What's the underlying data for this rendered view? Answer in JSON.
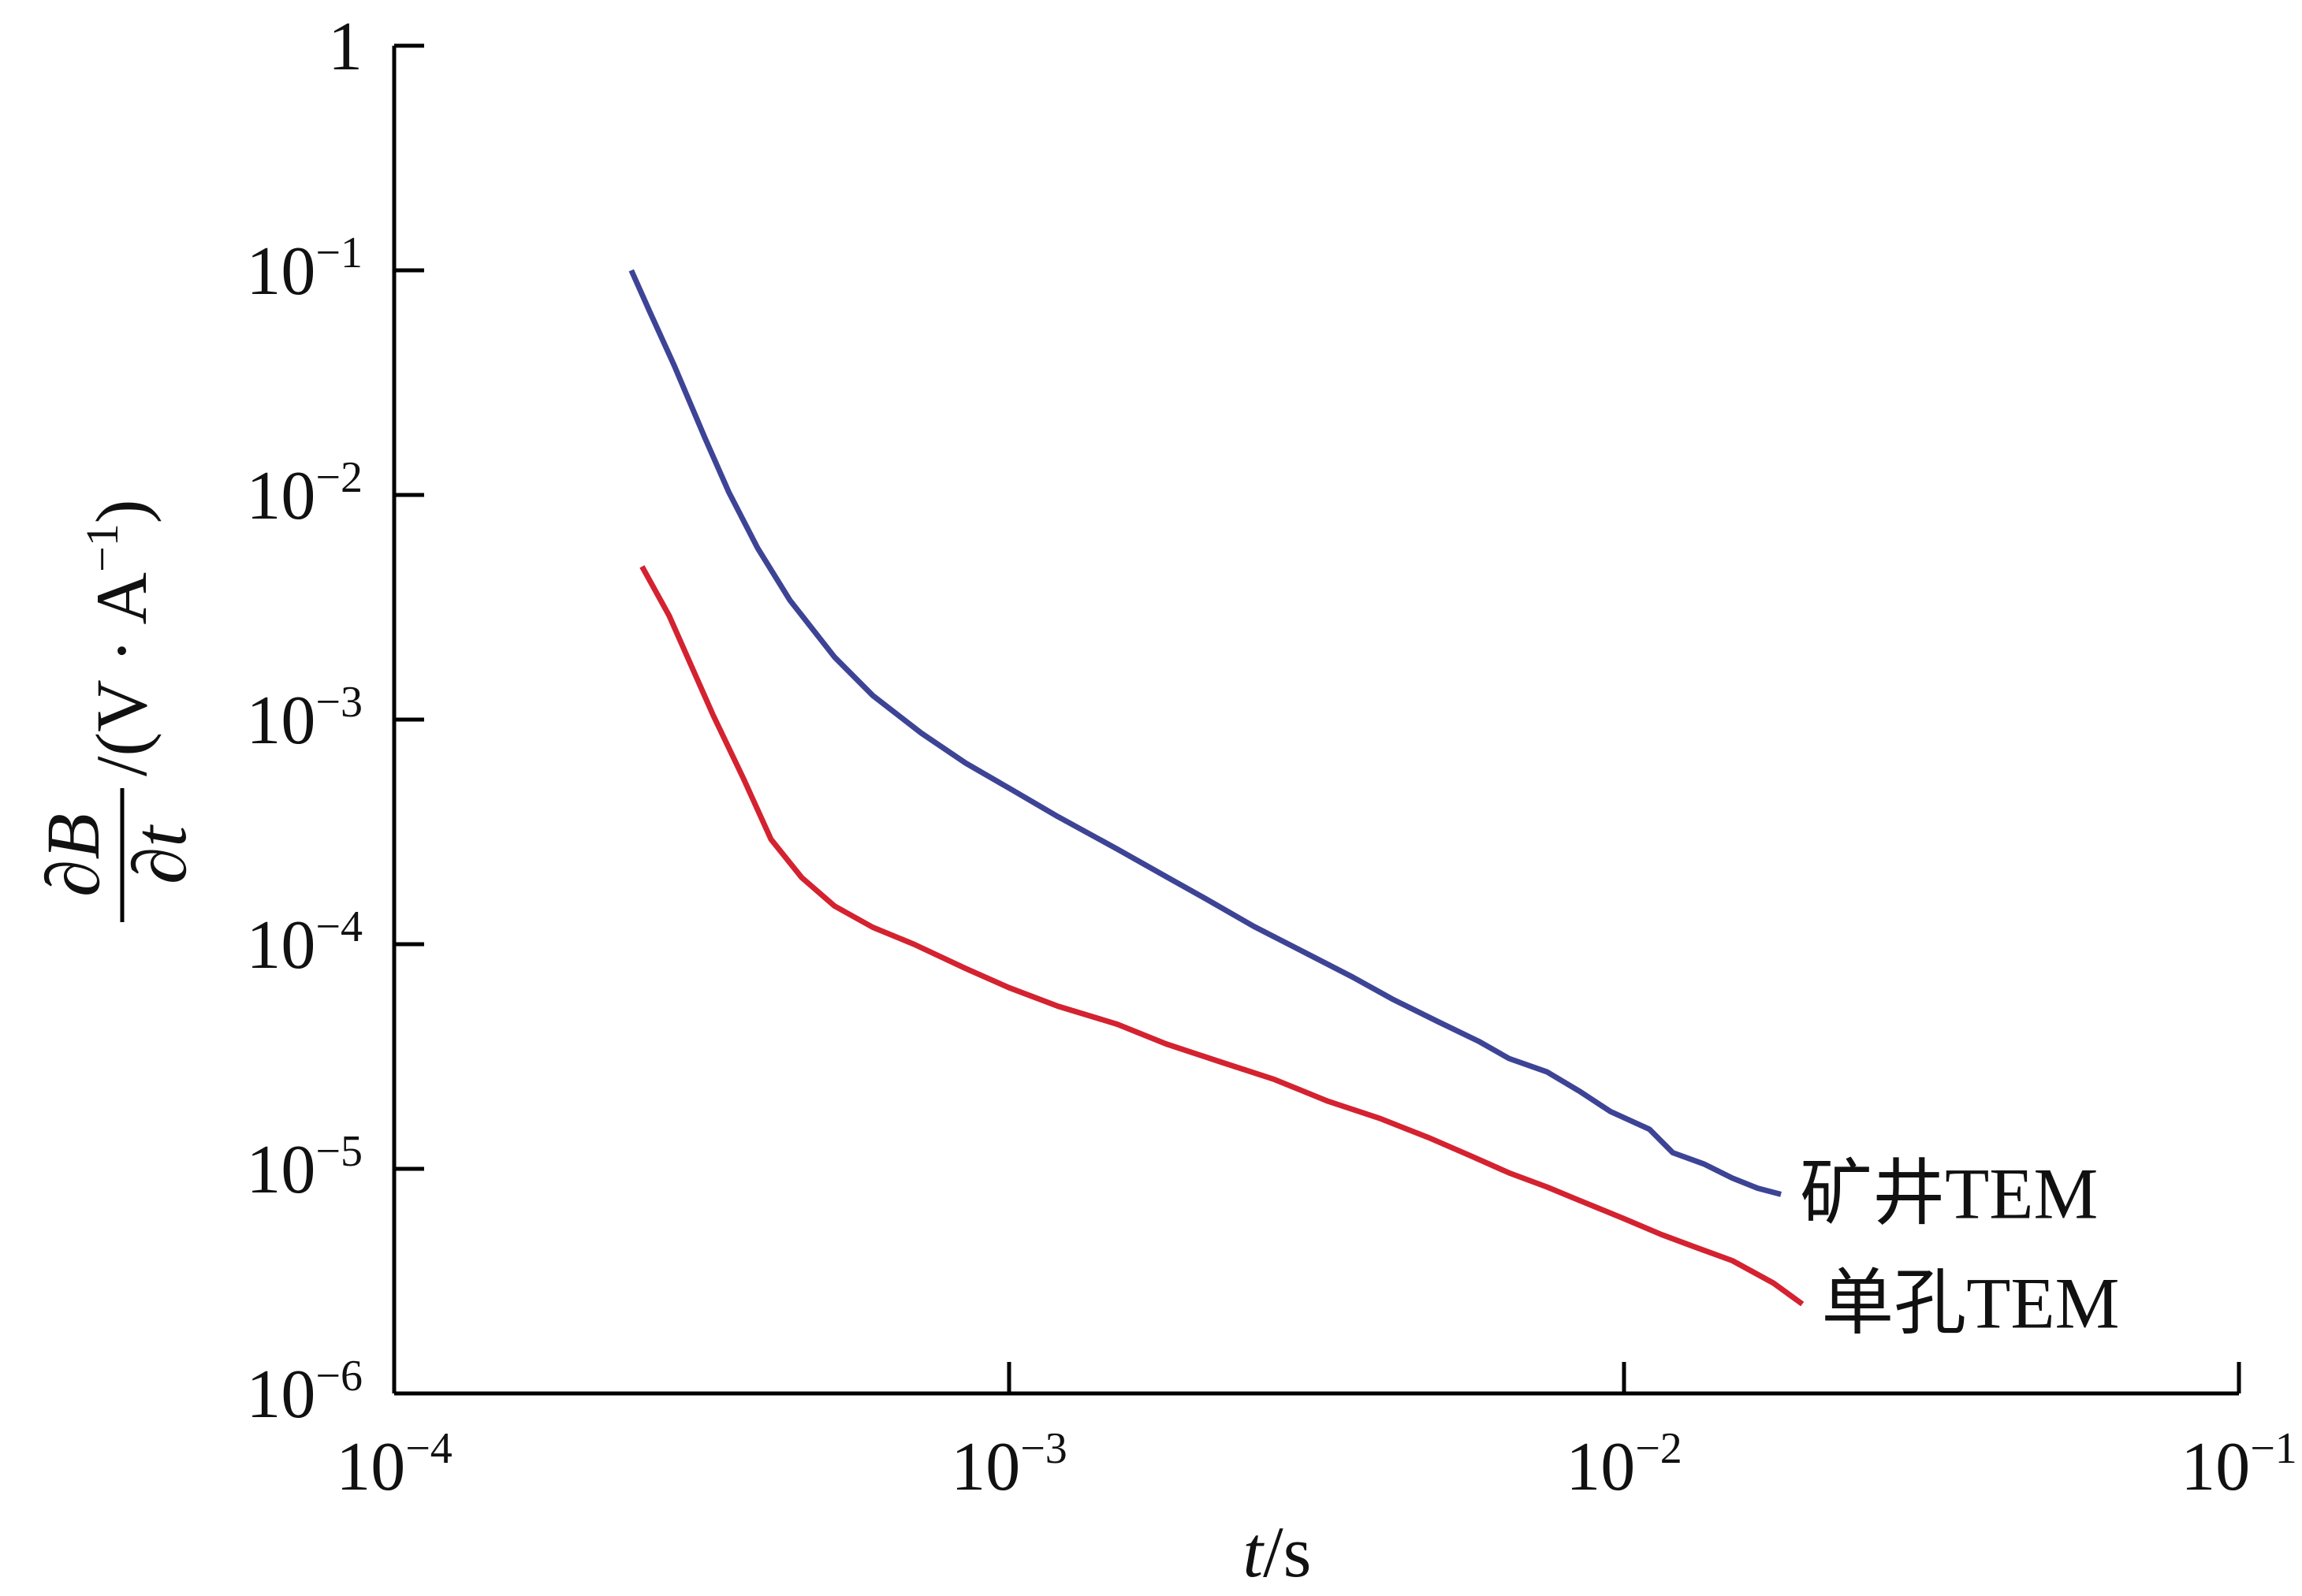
{
  "chart_data": {
    "type": "line",
    "x_scale": "log",
    "y_scale": "log",
    "xlim": [
      0.0001,
      0.1
    ],
    "ylim": [
      1e-06,
      1
    ],
    "grid": false,
    "xlabel": {
      "var": "t",
      "unit": "/s"
    },
    "ylabel": {
      "num": "∂B",
      "den": "∂t",
      "unit": "/(V · A",
      "sup": "−1",
      "close": ")"
    },
    "x_ticks": [
      {
        "v": 0.0001,
        "base": "10",
        "exp": "−4"
      },
      {
        "v": 0.001,
        "base": "10",
        "exp": "−3"
      },
      {
        "v": 0.01,
        "base": "10",
        "exp": "−2"
      },
      {
        "v": 0.1,
        "base": "10",
        "exp": "−1"
      }
    ],
    "y_ticks": [
      {
        "v": 1,
        "base": "1",
        "exp": ""
      },
      {
        "v": 0.1,
        "base": "10",
        "exp": "−1"
      },
      {
        "v": 0.01,
        "base": "10",
        "exp": "−2"
      },
      {
        "v": 0.001,
        "base": "10",
        "exp": "−3"
      },
      {
        "v": 0.0001,
        "base": "10",
        "exp": "−4"
      },
      {
        "v": 1e-05,
        "base": "10",
        "exp": "−5"
      },
      {
        "v": 1e-06,
        "base": "10",
        "exp": "−6"
      }
    ],
    "series": [
      {
        "name": "矿井TEM",
        "color": "#3d4496",
        "x": [
          0.000243,
          0.00026,
          0.000285,
          0.00032,
          0.00035,
          0.00039,
          0.00044,
          0.00052,
          0.0006,
          0.00072,
          0.00085,
          0.001,
          0.0012,
          0.0015,
          0.0018,
          0.0021,
          0.0025,
          0.003,
          0.0036,
          0.0042,
          0.005,
          0.0058,
          0.0065,
          0.0075,
          0.0085,
          0.0095,
          0.011,
          0.012,
          0.0135,
          0.015,
          0.0165,
          0.018
        ],
        "y": [
          0.1,
          0.066,
          0.038,
          0.018,
          0.0103,
          0.0058,
          0.0034,
          0.0019,
          0.00128,
          0.00087,
          0.00064,
          0.000495,
          0.00037,
          0.000265,
          0.0002,
          0.000158,
          0.00012,
          9.3e-05,
          7.2e-05,
          5.7e-05,
          4.5e-05,
          3.7e-05,
          3.1e-05,
          2.7e-05,
          2.2e-05,
          1.8e-05,
          1.5e-05,
          1.18e-05,
          1.05e-05,
          9.1e-06,
          8.2e-06,
          7.7e-06
        ]
      },
      {
        "name": "单孔TEM",
        "color": "#d42230",
        "x": [
          0.000253,
          0.00028,
          0.00033,
          0.00037,
          0.00041,
          0.00046,
          0.00052,
          0.0006,
          0.0007,
          0.00085,
          0.001,
          0.0012,
          0.0015,
          0.0018,
          0.0022,
          0.0027,
          0.0033,
          0.004,
          0.0048,
          0.0056,
          0.0065,
          0.0075,
          0.0085,
          0.01,
          0.0115,
          0.013,
          0.015,
          0.0175,
          0.0195
        ],
        "y": [
          0.0048,
          0.0029,
          0.00105,
          0.000545,
          0.000293,
          0.000198,
          0.000148,
          0.000119,
          0.0001,
          7.8e-05,
          6.4e-05,
          5.3e-05,
          4.4e-05,
          3.6e-05,
          3e-05,
          2.5e-05,
          2e-05,
          1.68e-05,
          1.38e-05,
          1.15e-05,
          9.6e-06,
          8.3e-06,
          7.2e-06,
          6e-06,
          5.1e-06,
          4.5e-06,
          3.9e-06,
          3.1e-06,
          2.5e-06
        ]
      }
    ]
  }
}
